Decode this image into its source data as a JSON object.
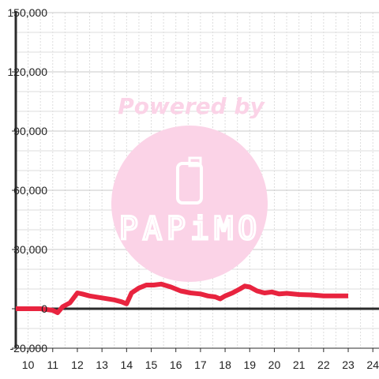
{
  "chart_data": {
    "type": "line",
    "title": "",
    "xlabel": "",
    "ylabel": "",
    "xlim": [
      9.5,
      24.25
    ],
    "ylim": [
      -20000,
      150000
    ],
    "x_ticks": [
      10,
      11,
      12,
      13,
      14,
      15,
      16,
      17,
      18,
      19,
      20,
      21,
      22,
      23,
      24
    ],
    "y_ticks": [
      -20000,
      0,
      30000,
      60000,
      90000,
      120000,
      150000
    ],
    "y_tick_labels": [
      "-20,000",
      "0",
      "30,000",
      "60,000",
      "90,000",
      "120,000",
      "150,000"
    ],
    "grid": true,
    "legend": "none",
    "colors": {
      "series": "#e8243f",
      "grid_major": "#c8c8c8",
      "grid_minor": "#dddddd",
      "axis": "#2b2b2b",
      "watermark": "#fbd3e7"
    },
    "series": [
      {
        "x": [
          9.5,
          10.0,
          10.5,
          11.0,
          11.2,
          11.4,
          11.7,
          12.0,
          12.2,
          12.5,
          13.0,
          13.5,
          13.8,
          14.0,
          14.2,
          14.5,
          14.8,
          15.1,
          15.4,
          15.8,
          16.2,
          16.6,
          17.0,
          17.3,
          17.6,
          17.8,
          18.0,
          18.3,
          18.6,
          18.8,
          19.0,
          19.3,
          19.6,
          19.9,
          20.2,
          20.5,
          21.0,
          21.5,
          22.0,
          22.5,
          23.0
        ],
        "y": [
          0,
          0,
          0,
          -800,
          -2000,
          1000,
          3000,
          8000,
          7500,
          6500,
          5500,
          4500,
          3500,
          2500,
          8000,
          10500,
          12000,
          12000,
          12500,
          11000,
          9000,
          8000,
          7500,
          6500,
          6000,
          5000,
          6500,
          8000,
          10000,
          11500,
          11000,
          9000,
          8000,
          8500,
          7500,
          7800,
          7200,
          7000,
          6500,
          6500,
          6500
        ]
      }
    ]
  },
  "watermark": {
    "text": "Powered by",
    "logo": "PAPiMO"
  }
}
